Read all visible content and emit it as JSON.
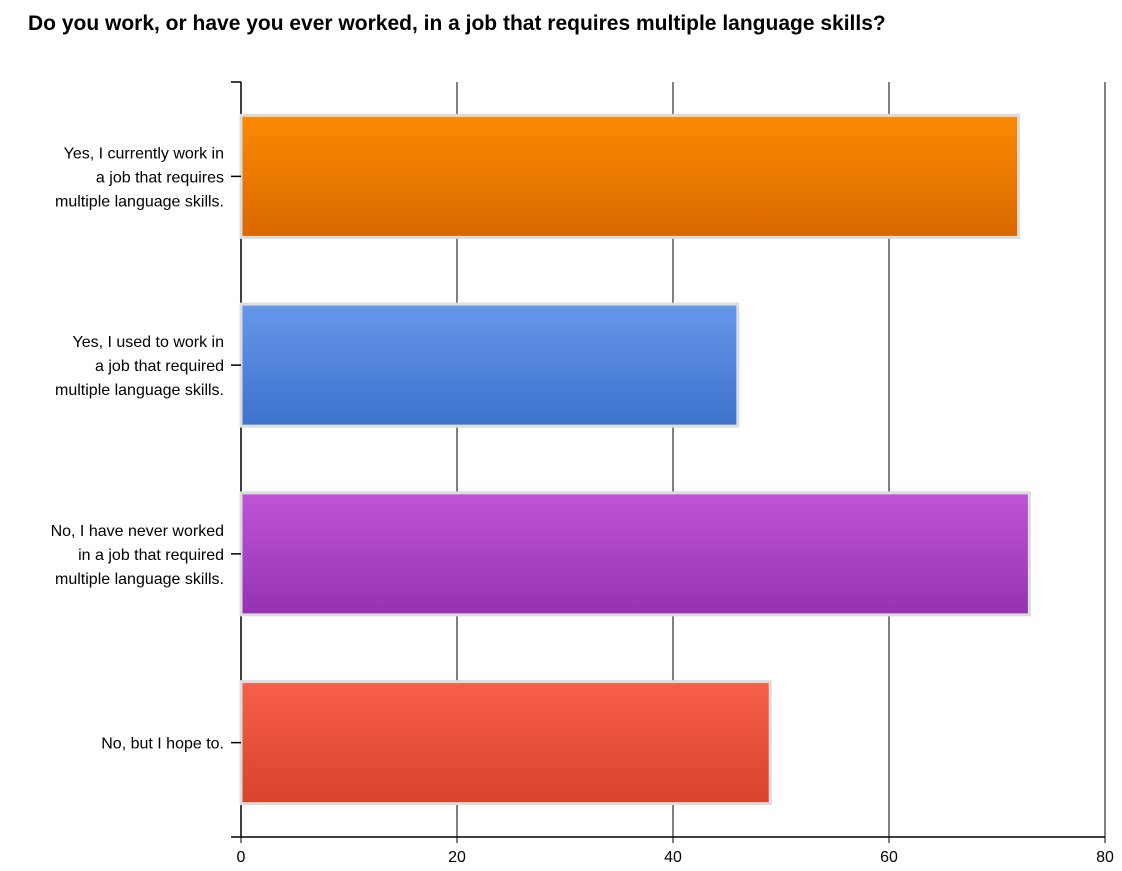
{
  "title": "Do you work, or have you ever worked, in a job that requires multiple language skills?",
  "chart_data": {
    "type": "bar",
    "orientation": "horizontal",
    "title": "Do you work, or have you ever worked, in a job that requires multiple language skills?",
    "categories": [
      [
        "Yes, I currently work in",
        "a job that requires",
        "multiple language skills."
      ],
      [
        "Yes, I used to work in",
        "a job that required",
        "multiple language skills."
      ],
      [
        "No, I have never worked",
        "in a job that required",
        "multiple language skills."
      ],
      [
        "No, but I hope to."
      ]
    ],
    "values": [
      72,
      46,
      73,
      49
    ],
    "colors": [
      [
        "#fb8a00",
        "#d96800"
      ],
      [
        "#6698ea",
        "#3d72cc"
      ],
      [
        "#bf55d6",
        "#9532b1"
      ],
      [
        "#f85f4a",
        "#d8432a"
      ]
    ],
    "xlim": [
      0,
      80
    ],
    "xticks": [
      "0",
      "20",
      "40",
      "60",
      "80"
    ],
    "grid": true,
    "legend": "none"
  }
}
